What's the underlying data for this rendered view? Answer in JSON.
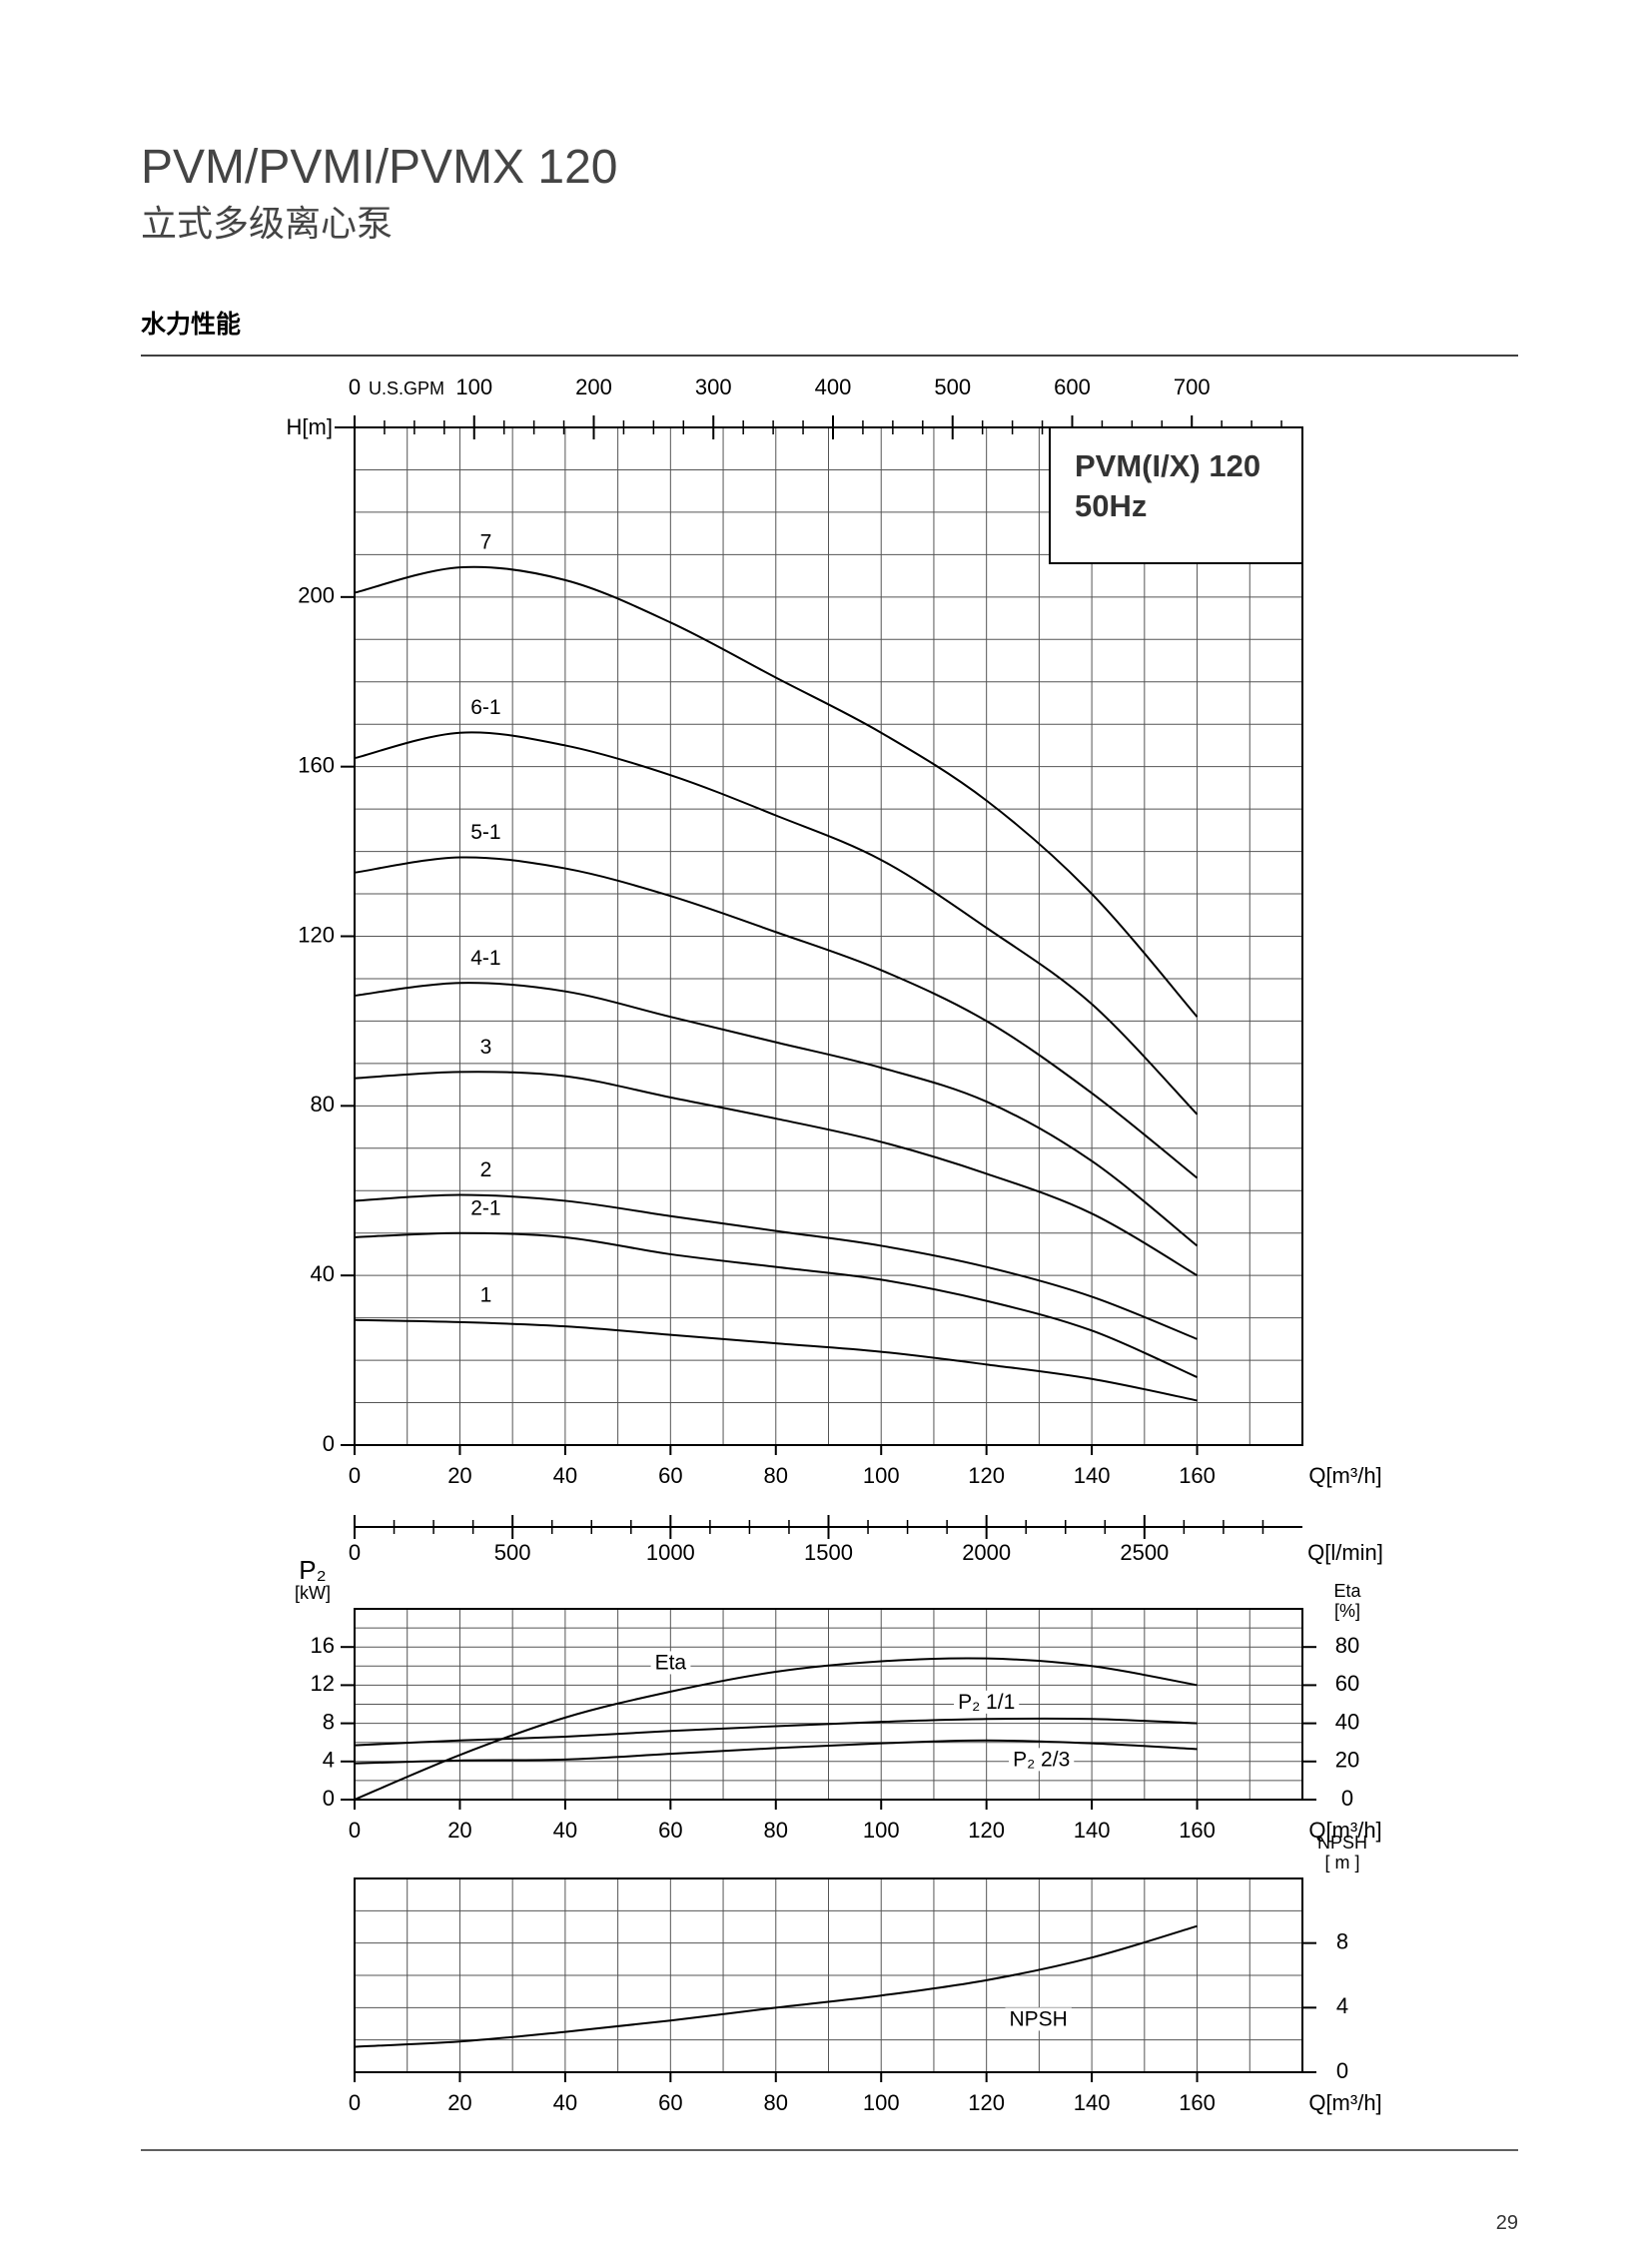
{
  "header": {
    "title": "PVM/PVMI/PVMX 120",
    "subtitle": "立式多级离心泵",
    "section": "水力性能"
  },
  "page_number": "29",
  "chart_data": [
    {
      "type": "line",
      "annotations": [
        "PVM(I/X) 120",
        "50Hz"
      ],
      "ylabel": "H[m]",
      "xlabel": "Q[m³/h]",
      "x": [
        0,
        20,
        40,
        60,
        80,
        100,
        120,
        140,
        160
      ],
      "xlim": [
        0,
        180
      ],
      "xticks": [
        0,
        20,
        40,
        60,
        80,
        100,
        120,
        140,
        160
      ],
      "ylim": [
        0,
        240
      ],
      "yticks": [
        0,
        40,
        80,
        120,
        160,
        200
      ],
      "grid": true,
      "grid_step": [
        10,
        10
      ],
      "x2label": "U.S.GPM",
      "x2lim": [
        0,
        792.5
      ],
      "x2ticks": [
        0,
        100,
        200,
        300,
        400,
        500,
        600,
        700
      ],
      "series": [
        {
          "name": "7",
          "color": "#000000",
          "values": [
            201,
            207,
            204,
            194,
            181,
            168,
            152,
            130,
            101
          ]
        },
        {
          "name": "6-1",
          "color": "#000000",
          "values": [
            162,
            168,
            165,
            158,
            148.5,
            138,
            122,
            104,
            78
          ]
        },
        {
          "name": "5-1",
          "color": "#000000",
          "values": [
            135,
            138.6,
            136,
            129.5,
            121,
            112,
            100,
            83,
            63
          ]
        },
        {
          "name": "4-1",
          "color": "#000000",
          "values": [
            106,
            109,
            107,
            101,
            95,
            89,
            81,
            67,
            47
          ]
        },
        {
          "name": "3",
          "color": "#000000",
          "values": [
            86.5,
            88,
            87,
            82,
            77,
            71.5,
            64,
            54.6,
            40
          ]
        },
        {
          "name": "2",
          "color": "#000000",
          "values": [
            57.6,
            59,
            57.6,
            54,
            50.5,
            47,
            42,
            35,
            25
          ]
        },
        {
          "name": "2-1",
          "color": "#000000",
          "values": [
            49,
            50,
            49,
            45,
            42,
            39,
            34,
            27,
            16
          ]
        },
        {
          "name": "1",
          "color": "#000000",
          "values": [
            29.5,
            29,
            28,
            26,
            24,
            22,
            19,
            15.6,
            10.5
          ]
        }
      ]
    },
    {
      "type": "line",
      "ylabel": [
        "P₂",
        "[kW]"
      ],
      "y2label": [
        "Eta",
        "[%]"
      ],
      "xlabel": "Q[m³/h]",
      "x": [
        0,
        20,
        40,
        60,
        80,
        100,
        120,
        140,
        160
      ],
      "xlim": [
        0,
        180
      ],
      "xticks": [
        0,
        20,
        40,
        60,
        80,
        100,
        120,
        140,
        160
      ],
      "ylim": [
        0,
        20
      ],
      "yticks": [
        0,
        4,
        8,
        12,
        16
      ],
      "y2lim": [
        0,
        100
      ],
      "y2ticks": [
        0,
        20,
        40,
        60,
        80
      ],
      "grid": true,
      "grid_step": [
        10,
        2
      ],
      "x2label": "Q[l/min]",
      "x2lim": [
        0,
        3000
      ],
      "x2ticks": [
        0,
        500,
        1000,
        1500,
        2000,
        2500
      ],
      "series": [
        {
          "name": "Eta",
          "color": "#000000",
          "axis": "y2",
          "values": [
            0,
            23.4,
            43,
            56.6,
            67,
            72.5,
            74,
            70,
            60
          ]
        },
        {
          "name": "P₂ 1/1",
          "color": "#000000",
          "values": [
            5.7,
            6.2,
            6.6,
            7.2,
            7.7,
            8.15,
            8.45,
            8.45,
            8
          ]
        },
        {
          "name": "P₂ 2/3",
          "color": "#000000",
          "values": [
            3.8,
            4.1,
            4.2,
            4.8,
            5.4,
            5.9,
            6.2,
            5.9,
            5.3
          ]
        }
      ]
    },
    {
      "type": "line",
      "ylabel": [
        "NPSH",
        "[ m ]"
      ],
      "xlabel": "Q[m³/h]",
      "yaxis_side": "right",
      "x": [
        0,
        20,
        40,
        60,
        80,
        100,
        120,
        140,
        160
      ],
      "xlim": [
        0,
        180
      ],
      "xticks": [
        0,
        20,
        40,
        60,
        80,
        100,
        120,
        140,
        160
      ],
      "ylim": [
        0,
        12
      ],
      "yticks": [
        0,
        4,
        8
      ],
      "grid": true,
      "grid_step": [
        10,
        2
      ],
      "series": [
        {
          "name": "NPSH",
          "color": "#000000",
          "values": [
            1.58,
            1.9,
            2.5,
            3.2,
            4.0,
            4.75,
            5.7,
            7.1,
            9.05
          ]
        }
      ]
    }
  ]
}
